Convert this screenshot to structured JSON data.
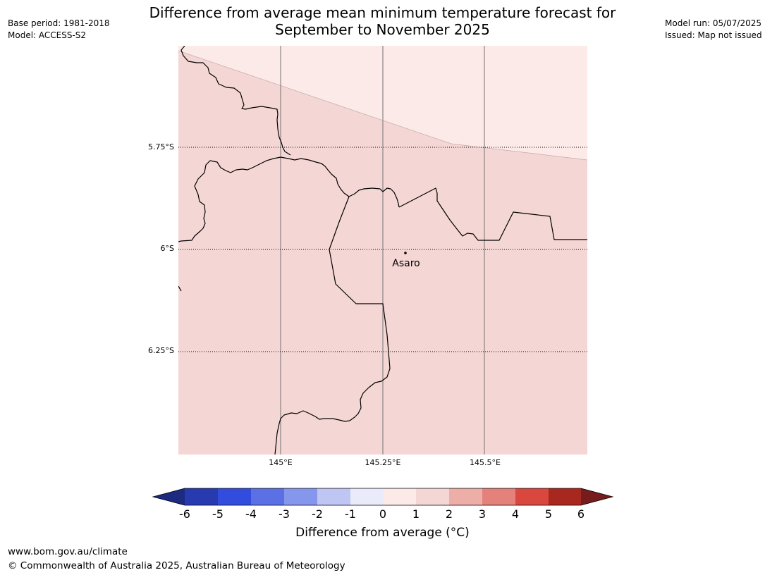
{
  "header": {
    "title_line1": "Difference from average mean minimum temperature forecast for",
    "title_line2": "September to November 2025",
    "base_period": "Base period: 1981-2018",
    "model": "Model: ACCESS-S2",
    "model_run": "Model run: 05/07/2025",
    "issued": "Issued: Map not issued"
  },
  "map": {
    "lat_labels": [
      "5.75°S",
      "6°S",
      "6.25°S"
    ],
    "lon_labels": [
      "145°E",
      "145.25°E",
      "145.5°E"
    ],
    "place": {
      "name": "Asaro"
    },
    "fill_colors": {
      "upper_band": "#fbeae8",
      "main": "#f4d6d4"
    }
  },
  "colorbar": {
    "ticks": [
      "-6",
      "-5",
      "-4",
      "-3",
      "-2",
      "-1",
      "0",
      "1",
      "2",
      "3",
      "4",
      "5",
      "6"
    ],
    "colors": [
      "#1c2a80",
      "#283ab0",
      "#324ddd",
      "#5a70e4",
      "#8597ed",
      "#bfc6f4",
      "#e9ebfb",
      "#fbeae8",
      "#f4d6d4",
      "#edaea8",
      "#e4817b",
      "#d9473f",
      "#a8271f",
      "#771c1c"
    ],
    "label": "Difference from average (°C)"
  },
  "footer": {
    "url": "www.bom.gov.au/climate",
    "copyright": "© Commonwealth of Australia 2025, Australian Bureau of Meteorology"
  }
}
